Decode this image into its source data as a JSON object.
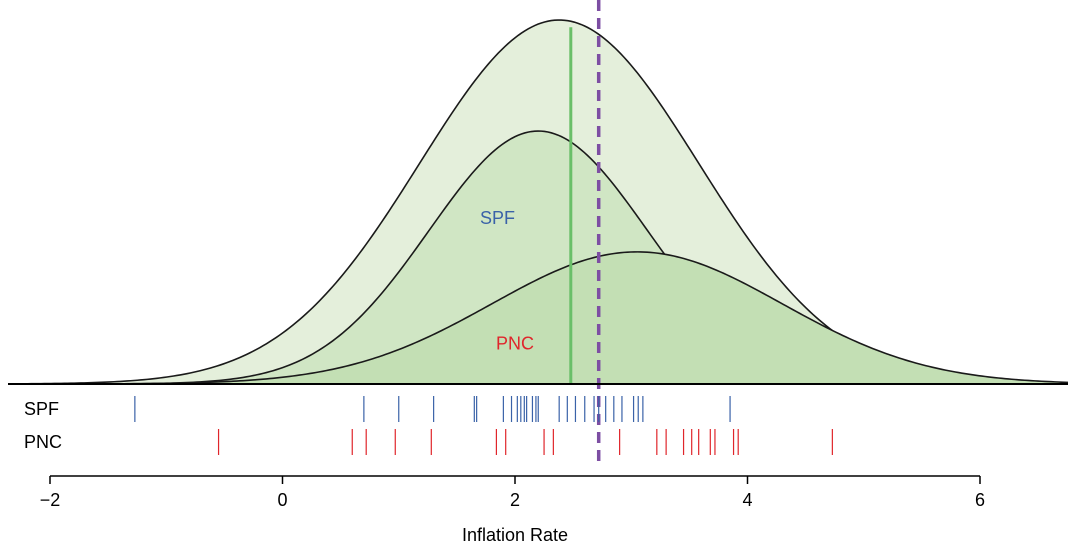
{
  "chart_data": {
    "type": "area",
    "xlabel": "Inflation Rate",
    "xlim": [
      -2,
      6
    ],
    "x_ticks": [
      -2,
      0,
      2,
      4,
      6
    ],
    "x_tick_labels": [
      "−2",
      "0",
      "2",
      "4",
      "6"
    ],
    "density_curves": [
      {
        "role": "combined",
        "mean": 2.38,
        "sd": 1.2,
        "peak": 1.0,
        "fill": "#e4efdb"
      },
      {
        "role": "SPF",
        "mean": 2.2,
        "sd": 0.94,
        "peak": 0.695,
        "fill": "#d0e6c4"
      },
      {
        "role": "PNC",
        "mean": 3.05,
        "sd": 1.25,
        "peak": 0.363,
        "fill": "#c3dfb4"
      }
    ],
    "curve_labels": [
      {
        "text": "SPF",
        "x": 1.85,
        "level": 0.44,
        "color": "#3a62a8"
      },
      {
        "text": "PNC",
        "x": 2.0,
        "level": 0.095,
        "color": "#e0252b"
      }
    ],
    "vertical_lines": [
      {
        "x": 2.48,
        "style": "solid",
        "color": "#6abf69"
      },
      {
        "x": 2.72,
        "style": "dashed",
        "color": "#7d4ea3"
      }
    ],
    "rug_rows": [
      {
        "label": "SPF",
        "color": "#3a62a8",
        "values": [
          -1.27,
          0.7,
          1.0,
          1.3,
          1.65,
          1.67,
          1.9,
          1.97,
          2.02,
          2.05,
          2.08,
          2.1,
          2.15,
          2.18,
          2.2,
          2.38,
          2.45,
          2.52,
          2.6,
          2.68,
          2.72,
          2.78,
          2.85,
          2.92,
          3.02,
          3.06,
          3.1,
          3.85
        ]
      },
      {
        "label": "PNC",
        "color": "#e0252b",
        "values": [
          -0.55,
          0.6,
          0.72,
          0.97,
          1.28,
          1.84,
          1.92,
          2.25,
          2.33,
          2.9,
          3.22,
          3.3,
          3.45,
          3.52,
          3.58,
          3.68,
          3.72,
          3.88,
          3.92,
          4.73
        ]
      }
    ]
  }
}
